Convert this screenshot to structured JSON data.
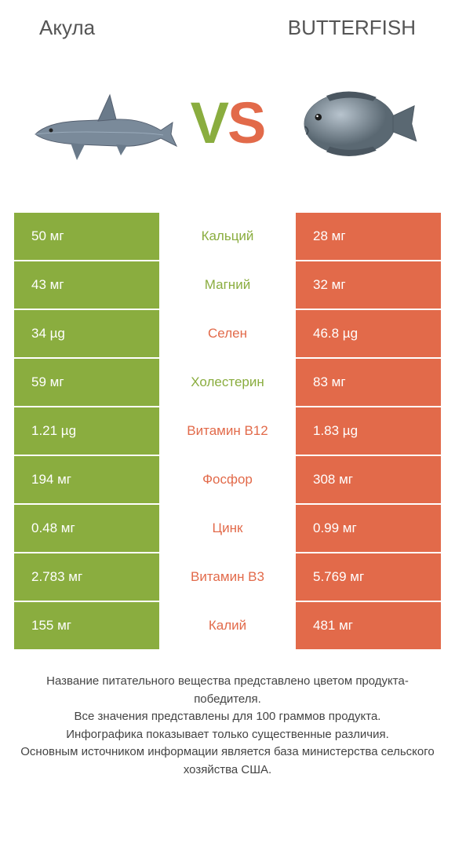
{
  "colors": {
    "left": "#8aad3f",
    "right": "#e26a4a",
    "background": "#ffffff",
    "text": "#333333",
    "header_text": "#555555",
    "footer_text": "#444444"
  },
  "typography": {
    "header_fontsize": 26,
    "vs_fontsize": 74,
    "cell_fontsize": 17,
    "footer_fontsize": 15
  },
  "header": {
    "left_title": "Акула",
    "right_title": "BUTTERFISH"
  },
  "vs": {
    "v": "V",
    "s": "S"
  },
  "images": {
    "left_name": "shark",
    "right_name": "butterfish"
  },
  "rows": [
    {
      "nutrient": "Кальций",
      "left": "50 мг",
      "right": "28 мг",
      "winner": "left"
    },
    {
      "nutrient": "Магний",
      "left": "43 мг",
      "right": "32 мг",
      "winner": "left"
    },
    {
      "nutrient": "Селен",
      "left": "34 µg",
      "right": "46.8 µg",
      "winner": "right"
    },
    {
      "nutrient": "Холестерин",
      "left": "59 мг",
      "right": "83 мг",
      "winner": "left"
    },
    {
      "nutrient": "Витамин B12",
      "left": "1.21 µg",
      "right": "1.83 µg",
      "winner": "right"
    },
    {
      "nutrient": "Фосфор",
      "left": "194 мг",
      "right": "308 мг",
      "winner": "right"
    },
    {
      "nutrient": "Цинк",
      "left": "0.48 мг",
      "right": "0.99 мг",
      "winner": "right"
    },
    {
      "nutrient": "Витамин B3",
      "left": "2.783 мг",
      "right": "5.769 мг",
      "winner": "right"
    },
    {
      "nutrient": "Калий",
      "left": "155 мг",
      "right": "481 мг",
      "winner": "right"
    }
  ],
  "footer": {
    "line1": "Название питательного вещества представлено цветом продукта-победителя.",
    "line2": "Все значения представлены для 100 граммов продукта.",
    "line3": "Инфографика показывает только существенные различия.",
    "line4": "Основным источником информации является база министерства сельского хозяйства США."
  }
}
